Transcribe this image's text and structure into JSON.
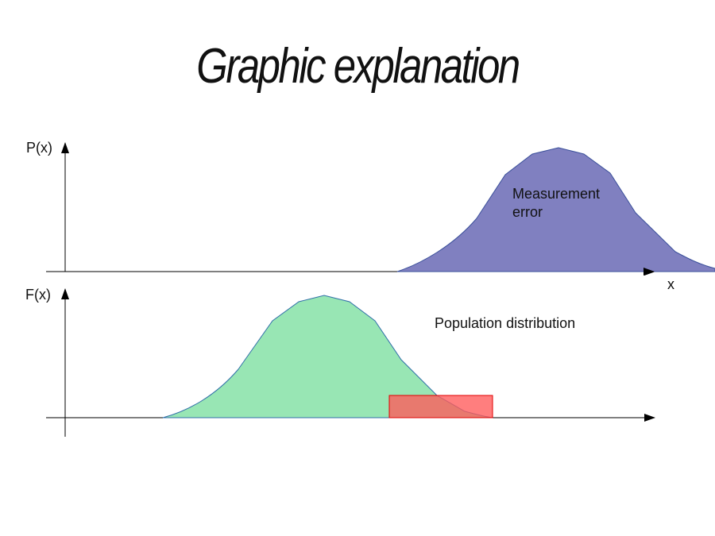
{
  "title": "Graphic explanation",
  "labels": {
    "p_axis": "P(x)",
    "f_axis": "F(x)",
    "x_axis": "x",
    "measurement_line1": "Measurement",
    "measurement_line2": "error",
    "population": "Population distribution"
  },
  "colors": {
    "measurement_fill": "#8080c0",
    "measurement_stroke": "#3a4f9a",
    "population_fill": "#98e6b4",
    "population_stroke": "#2f6fa8",
    "overlap_fill": "#ff6b6b",
    "overlap_stroke": "#e00000",
    "axis": "#000000"
  }
}
